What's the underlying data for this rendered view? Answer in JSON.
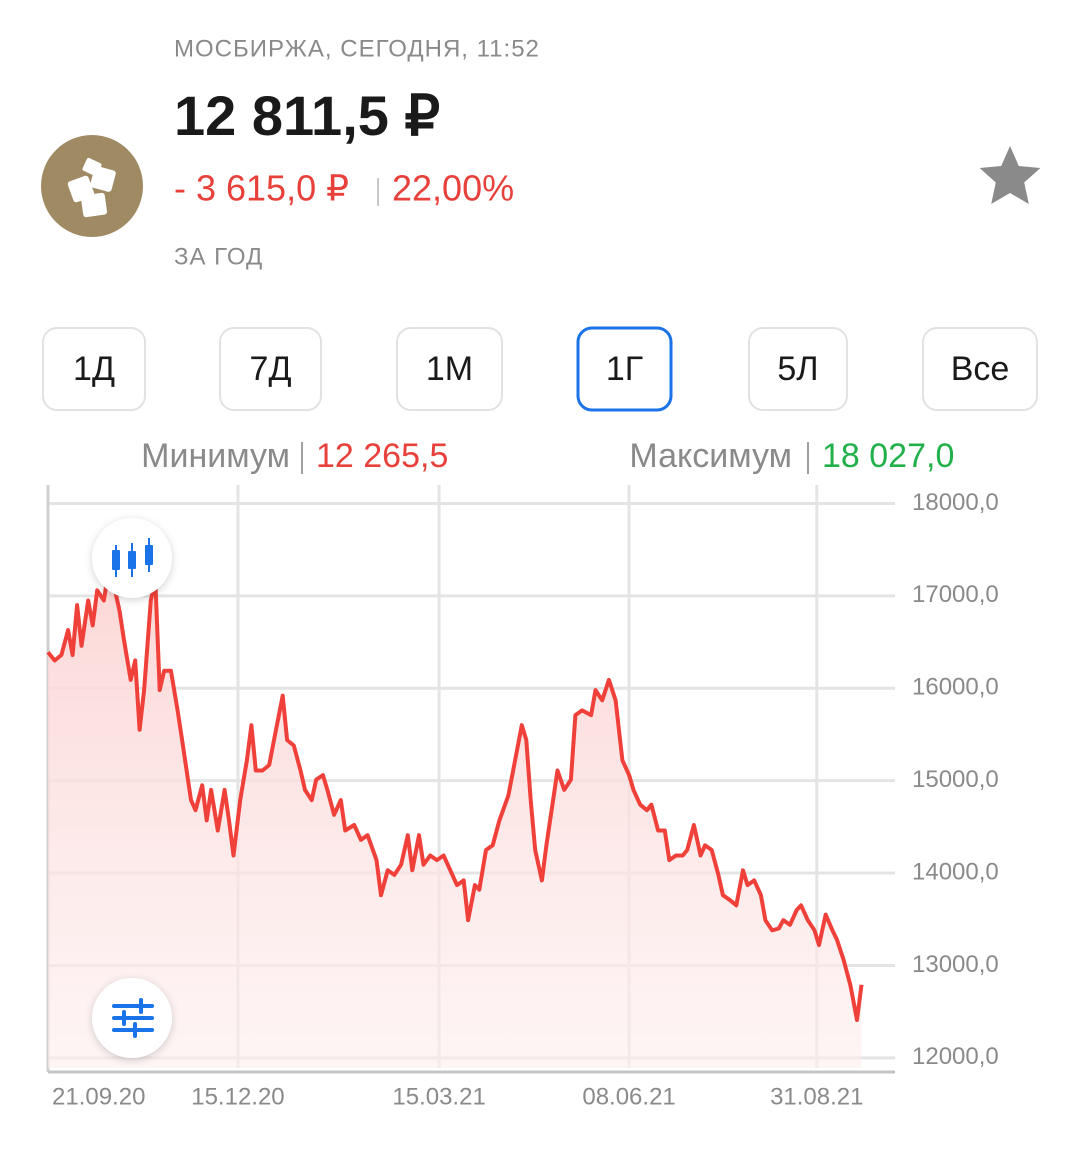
{
  "header": {
    "exchange": "МОСБИРЖА, СЕГОДНЯ, 11:52",
    "price": "12 811,5 ₽",
    "change": "- 3 615,0 ₽",
    "change_percent": "22,00%",
    "period": "ЗА ГОД"
  },
  "periods": [
    "1Д",
    "7Д",
    "1М",
    "1Г",
    "5Л",
    "Все"
  ],
  "active_period": 3,
  "stats": {
    "min_label": "Минимум",
    "min_value": "12 265,5",
    "max_label": "Максимум",
    "max_value": "18 027,0"
  },
  "chart_data": {
    "type": "line",
    "x": [
      0,
      3,
      6,
      9,
      11,
      13,
      15,
      18,
      20,
      22,
      25,
      27,
      30,
      32,
      34,
      37,
      39,
      41,
      43,
      46,
      48,
      50,
      52,
      55,
      58,
      60,
      64,
      66,
      69,
      71,
      73,
      76,
      79,
      81,
      83,
      86,
      89,
      91,
      93,
      96,
      99,
      102,
      105,
      107,
      110,
      113,
      115,
      118,
      120,
      123,
      125,
      128,
      131,
      133,
      137,
      140,
      143,
      147,
      149,
      152,
      155,
      158,
      161,
      163,
      166,
      168,
      171,
      174,
      177,
      180,
      183,
      186,
      188,
      191,
      193,
      196,
      199,
      202,
      206,
      209,
      212,
      214,
      216,
      218,
      221,
      223,
      226,
      228,
      231,
      234,
      236,
      239,
      243,
      245,
      248,
      251,
      254,
      257,
      260,
      262,
      265,
      268,
      270,
      273,
      276,
      278,
      281,
      284,
      286,
      289,
      292,
      294,
      297,
      300,
      302,
      305,
      308,
      311,
      313,
      316,
      319,
      321,
      324,
      327,
      329,
      332,
      335,
      337,
      340,
      343,
      345,
      348,
      351,
      353,
      356,
      359,
      362,
      364
    ],
    "values": [
      16390,
      16300,
      16360,
      16630,
      16360,
      16900,
      16460,
      16950,
      16680,
      17060,
      16950,
      17270,
      17060,
      16840,
      16520,
      16090,
      16300,
      15550,
      15980,
      16950,
      17170,
      15980,
      16190,
      16190,
      15760,
      15440,
      14790,
      14680,
      14950,
      14570,
      14900,
      14460,
      14900,
      14570,
      14190,
      14790,
      15220,
      15600,
      15110,
      15110,
      15170,
      15550,
      15920,
      15440,
      15380,
      15110,
      14900,
      14790,
      15010,
      15060,
      14900,
      14630,
      14790,
      14460,
      14520,
      14360,
      14410,
      14140,
      13760,
      14030,
      13980,
      14090,
      14410,
      14030,
      14410,
      14090,
      14190,
      14140,
      14190,
      14030,
      13870,
      13920,
      13490,
      13870,
      13820,
      14250,
      14300,
      14570,
      14840,
      15220,
      15600,
      15440,
      14790,
      14250,
      13920,
      14300,
      14790,
      15110,
      14900,
      15010,
      15710,
      15760,
      15710,
      15980,
      15870,
      16090,
      15870,
      15220,
      15060,
      14900,
      14740,
      14680,
      14740,
      14460,
      14460,
      14140,
      14190,
      14190,
      14250,
      14520,
      14190,
      14300,
      14250,
      13980,
      13760,
      13710,
      13650,
      14030,
      13870,
      13920,
      13760,
      13490,
      13380,
      13400,
      13490,
      13440,
      13600,
      13650,
      13490,
      13380,
      13220,
      13550,
      13380,
      13280,
      13060,
      12790,
      12410,
      12790
    ],
    "color": "#f0403a",
    "area": true,
    "xlim": [
      0,
      379
    ],
    "xticks": [
      {
        "value": 0,
        "label": "21.09.20"
      },
      {
        "value": 85,
        "label": "15.12.20"
      },
      {
        "value": 175,
        "label": "15.03.21"
      },
      {
        "value": 260,
        "label": "08.06.21"
      },
      {
        "value": 344,
        "label": "31.08.21"
      }
    ],
    "ylim": [
      11890,
      18200
    ],
    "yticks": [
      {
        "value": 12000,
        "label": "12000,0"
      },
      {
        "value": 13000,
        "label": "13000,0"
      },
      {
        "value": 14000,
        "label": "14000,0"
      },
      {
        "value": 15000,
        "label": "15000,0"
      },
      {
        "value": 16000,
        "label": "16000,0"
      },
      {
        "value": 17000,
        "label": "17000,0"
      },
      {
        "value": 18000,
        "label": "18000,0"
      }
    ],
    "grid": true
  }
}
